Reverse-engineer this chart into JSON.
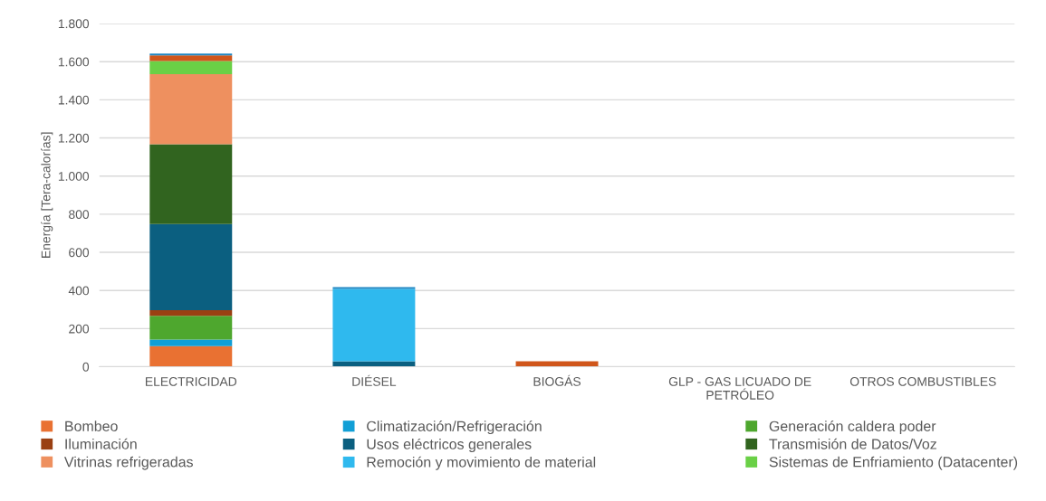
{
  "chart_data": {
    "type": "bar",
    "stacked": true,
    "ylabel": "Energía [Tera-calorías]",
    "categories": [
      "ELECTRICIDAD",
      "DIÉSEL",
      "BIOGÁS",
      "GLP - GAS LICUADO DE\nPETRÓLEO",
      "OTROS COMBUSTIBLES"
    ],
    "series": [
      {
        "name": "Bombeo",
        "color": "#e97132",
        "values": [
          108,
          0,
          0,
          0,
          0
        ]
      },
      {
        "name": "Climatización/Refrigeración",
        "color": "#119fd6",
        "values": [
          35,
          0,
          0,
          0,
          0
        ]
      },
      {
        "name": "Generación caldera poder",
        "color": "#4ea72e",
        "values": [
          124,
          0,
          0,
          0,
          0
        ]
      },
      {
        "name": "Iluminación",
        "color": "#9a4012",
        "values": [
          30,
          0,
          0,
          0,
          0
        ]
      },
      {
        "name": "Usos eléctricos generales",
        "color": "#0b5f80",
        "values": [
          451,
          28,
          0,
          0,
          0
        ]
      },
      {
        "name": "Transmisión de Datos/Voz",
        "color": "#31641f",
        "values": [
          419,
          0,
          0,
          0,
          0
        ]
      },
      {
        "name": "Vitrinas refrigeradas",
        "color": "#ee905f",
        "values": [
          368,
          0,
          0,
          0,
          0
        ]
      },
      {
        "name": "Remoción y movimiento de material",
        "color": "#2fb9ee",
        "values": [
          0,
          380,
          0,
          0,
          0
        ]
      },
      {
        "name": "Sistemas de Enfriamiento (Datacenter)",
        "color": "#6ad046",
        "values": [
          68,
          0,
          0,
          0,
          0
        ]
      },
      {
        "color": "#d0561b",
        "values": [
          30,
          0,
          28,
          0,
          0
        ]
      },
      {
        "color": "#1d86c2",
        "values": [
          10,
          10,
          0,
          0,
          0
        ]
      },
      {
        "color": "#b8c5d1",
        "values": [
          0,
          0,
          0,
          3,
          3
        ]
      }
    ],
    "ylim": [
      0,
      1800
    ],
    "yticks": [
      0,
      {
        "value": 200,
        "label": "200"
      },
      {
        "value": 400,
        "label": "400"
      },
      {
        "value": 600,
        "label": "600"
      },
      {
        "value": 800,
        "label": "800"
      },
      {
        "value": 1000,
        "label": "1.000"
      },
      {
        "value": 1200,
        "label": "1.200"
      },
      {
        "value": 1400,
        "label": "1.400"
      },
      {
        "value": 1600,
        "label": "1.600"
      },
      {
        "value": 1800,
        "label": "1.800"
      }
    ],
    "grid": "y",
    "legend": "bottom"
  }
}
